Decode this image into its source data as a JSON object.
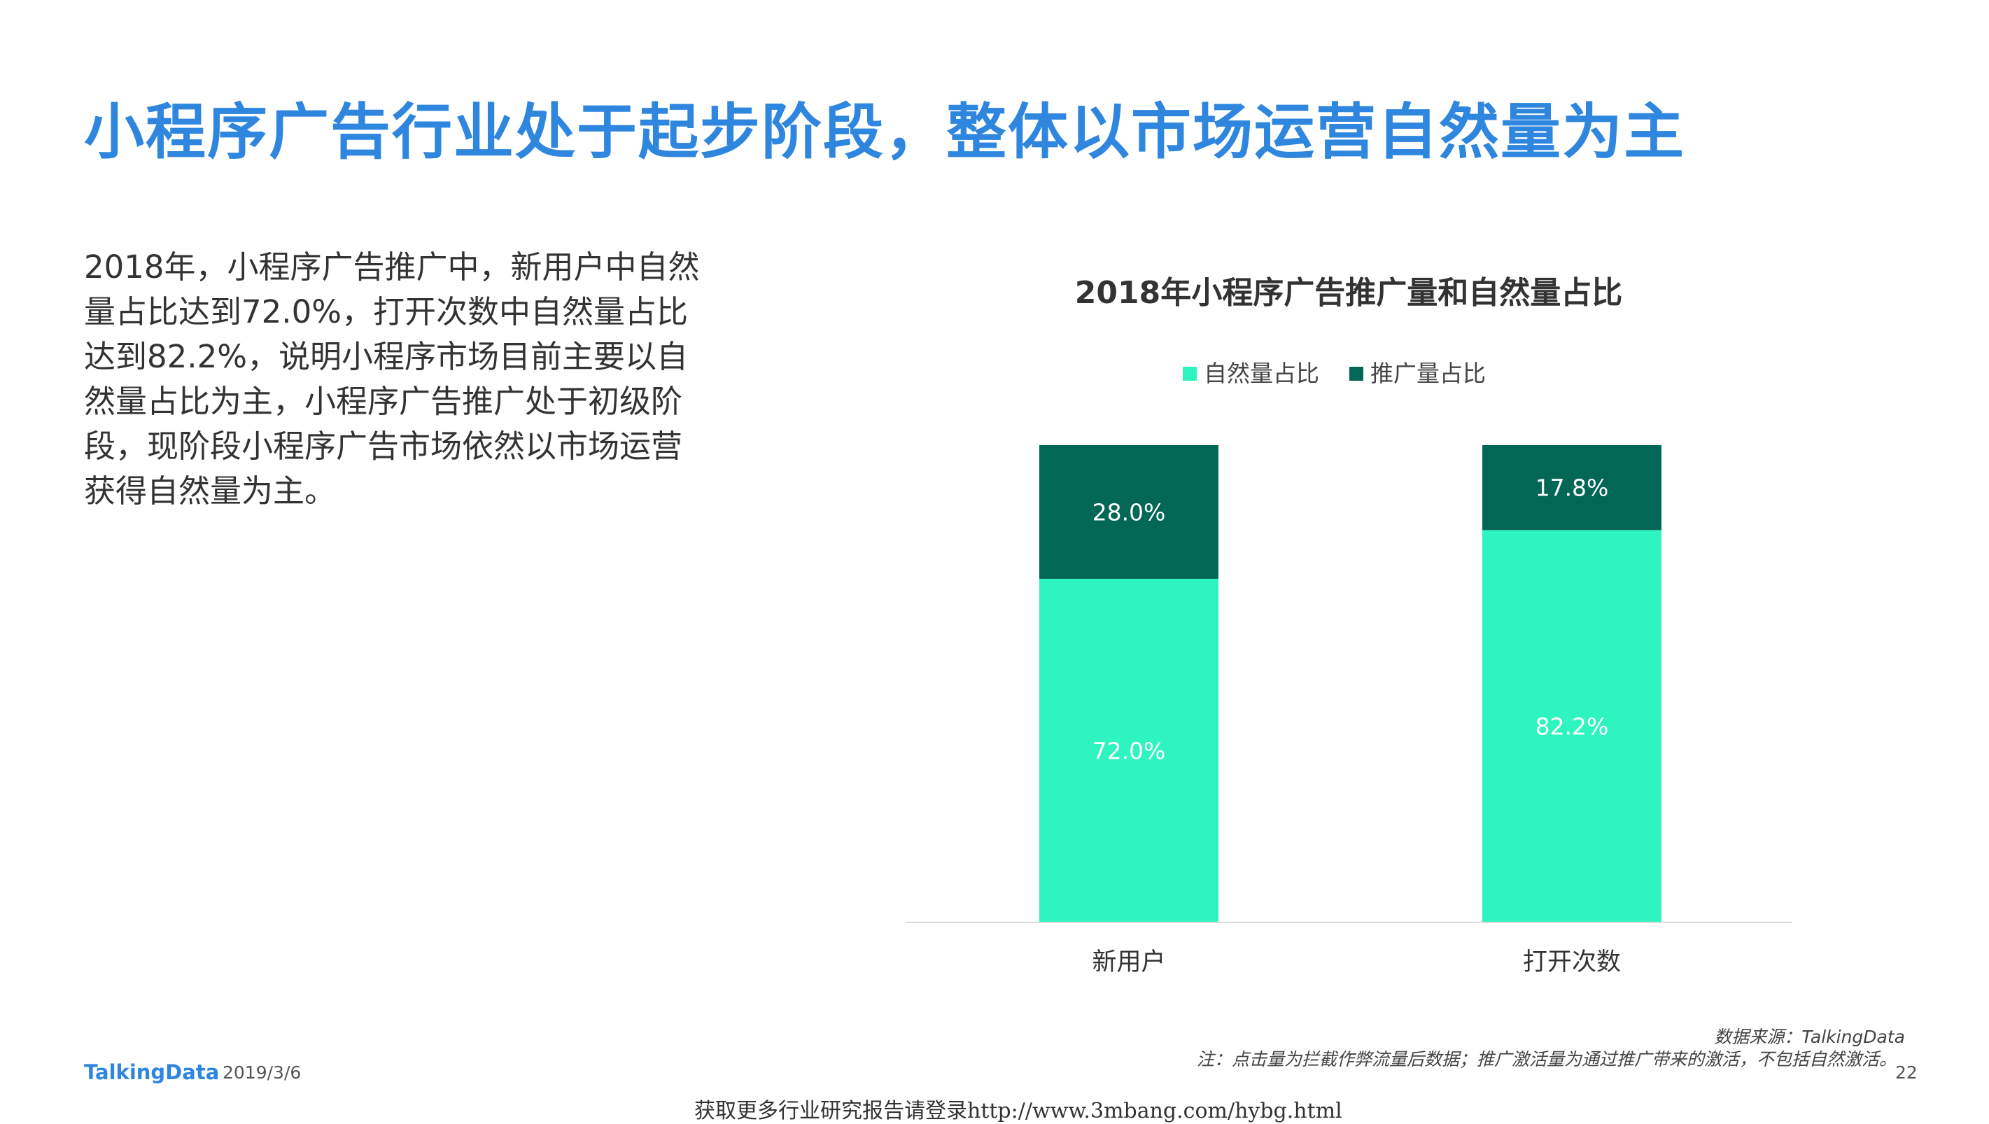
{
  "slide": {
    "title": "小程序广告行业处于起步阶段，整体以市场运营自然量为主",
    "body_lines": [
      "2018年，小程序广告推广中，新用户中自然",
      "量占比达到72.0%，打开次数中自然量占比",
      "达到82.2%，说明小程序市场目前主要以自",
      "然量占比为主，小程序广告推广处于初级阶",
      "段，现阶段小程序广告市场依然以市场运营",
      "获得自然量为主。"
    ],
    "source": "数据来源：TalkingData",
    "note": "注：点击量为拦截作弊流量后数据；推广激活量为通过推广带来的激活，不包括自然激活。",
    "logo": "TalkingData",
    "date": "2019/3/6",
    "page_number": "22",
    "footer": "获取更多行业研究报告请登录http://www.3mbang.com/hybg.html"
  },
  "chart_data": {
    "type": "bar",
    "stacked": true,
    "title": "2018年小程序广告推广量和自然量占比",
    "categories": [
      "新用户",
      "打开次数"
    ],
    "series": [
      {
        "name": "自然量占比",
        "values": [
          72.0,
          82.2
        ],
        "labels": [
          "72.0%",
          "82.2%"
        ],
        "color": "#2ef5c0"
      },
      {
        "name": "推广量占比",
        "values": [
          28.0,
          17.8
        ],
        "labels": [
          "28.0%",
          "17.8%"
        ],
        "color": "#036756"
      }
    ],
    "ylim": [
      0,
      100
    ],
    "legend": "top-center",
    "grid": false,
    "xlabel": "",
    "ylabel": ""
  }
}
